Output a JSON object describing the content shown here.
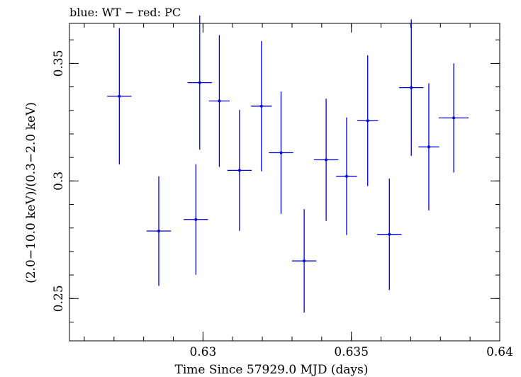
{
  "chart_data": {
    "type": "scatter",
    "title": "blue: WT − red: PC",
    "xlabel": "Time Since 57929.0 MJD (days)",
    "ylabel": "(2.0−10.0 keV)/(0.3−2.0 keV)",
    "xlim": [
      0.6255,
      0.64
    ],
    "ylim": [
      0.232,
      0.367
    ],
    "xticks": [
      {
        "value": 0.63,
        "label": "0.63"
      },
      {
        "value": 0.635,
        "label": "0.635"
      },
      {
        "value": 0.64,
        "label": "0.64"
      }
    ],
    "yticks": [
      {
        "value": 0.25,
        "label": "0.25"
      },
      {
        "value": 0.3,
        "label": "0.3"
      },
      {
        "value": 0.35,
        "label": "0.35"
      }
    ],
    "x_minor_step": 0.001,
    "y_minor_step": 0.01,
    "series": [
      {
        "name": "WT",
        "color": "#0000dd",
        "points": [
          {
            "x": 0.62718,
            "xerr": 0.00041,
            "y": 0.336,
            "yerr": 0.029
          },
          {
            "x": 0.62851,
            "xerr": 0.00041,
            "y": 0.2787,
            "yerr": 0.0233
          },
          {
            "x": 0.62989,
            "xerr": 0.00041,
            "y": 0.3418,
            "yerr": 0.0285
          },
          {
            "x": 0.62976,
            "xerr": 0.00041,
            "y": 0.2836,
            "yerr": 0.0235
          },
          {
            "x": 0.63055,
            "xerr": 0.00035,
            "y": 0.334,
            "yerr": 0.028
          },
          {
            "x": 0.63123,
            "xerr": 0.00041,
            "y": 0.3045,
            "yerr": 0.0257
          },
          {
            "x": 0.63197,
            "xerr": 0.00035,
            "y": 0.3318,
            "yerr": 0.0277
          },
          {
            "x": 0.63263,
            "xerr": 0.00041,
            "y": 0.312,
            "yerr": 0.026
          },
          {
            "x": 0.63341,
            "xerr": 0.00041,
            "y": 0.266,
            "yerr": 0.022
          },
          {
            "x": 0.63415,
            "xerr": 0.00041,
            "y": 0.309,
            "yerr": 0.026
          },
          {
            "x": 0.63484,
            "xerr": 0.00035,
            "y": 0.302,
            "yerr": 0.025
          },
          {
            "x": 0.63555,
            "xerr": 0.00035,
            "y": 0.3256,
            "yerr": 0.0278
          },
          {
            "x": 0.63628,
            "xerr": 0.00041,
            "y": 0.2773,
            "yerr": 0.0237
          },
          {
            "x": 0.63702,
            "xerr": 0.00041,
            "y": 0.3397,
            "yerr": 0.029
          },
          {
            "x": 0.63761,
            "xerr": 0.00035,
            "y": 0.3145,
            "yerr": 0.027
          },
          {
            "x": 0.63845,
            "xerr": 0.0005,
            "y": 0.3268,
            "yerr": 0.0232
          }
        ]
      }
    ]
  }
}
